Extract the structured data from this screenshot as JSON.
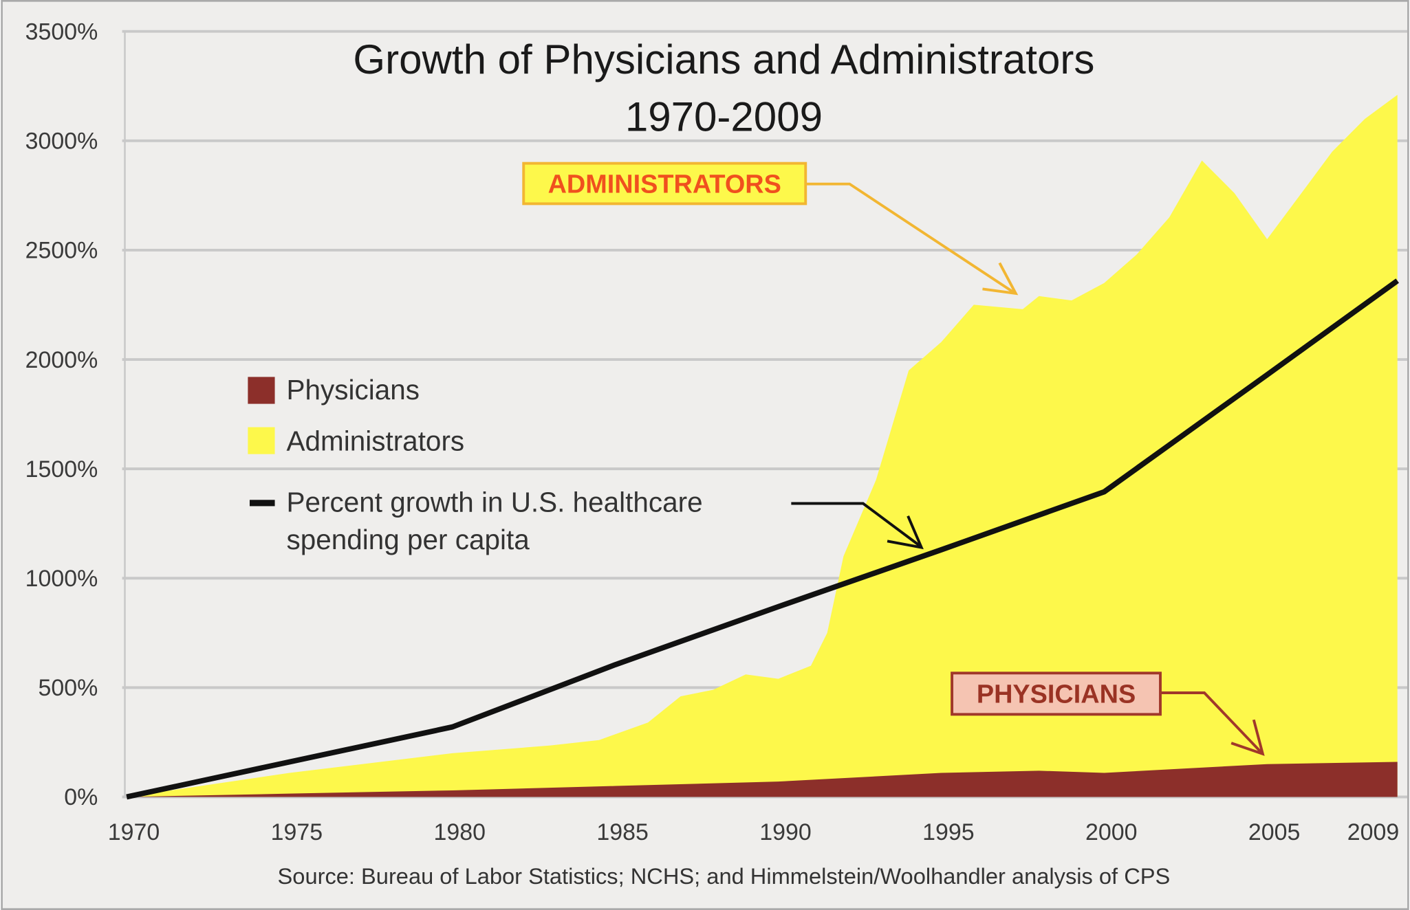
{
  "chart_data": {
    "type": "area",
    "title": "Growth of Physicians and Administrators",
    "subtitle": "1970-2009",
    "xlabel": "",
    "ylabel": "",
    "xlim": [
      1970,
      2009
    ],
    "ylim": [
      0,
      3500
    ],
    "grid": "horizontal",
    "legend_placement": "center-left",
    "x_ticks": [
      "1970",
      "1975",
      "1980",
      "1985",
      "1990",
      "1995",
      "2000",
      "2005",
      "2009"
    ],
    "y_ticks": [
      "0%",
      "500%",
      "1000%",
      "1500%",
      "2000%",
      "2500%",
      "3000%",
      "3500%"
    ],
    "series": [
      {
        "name": "Administrators",
        "kind": "area",
        "color": "#fdf84b",
        "x": [
          1970,
          1975,
          1980,
          1983,
          1984.5,
          1986,
          1987,
          1988,
          1989,
          1990,
          1991,
          1991.5,
          1992,
          1993,
          1994,
          1995,
          1996,
          1997.5,
          1998,
          1999,
          2000,
          2001,
          2002,
          2003,
          2004,
          2005,
          2006,
          2007,
          2008,
          2009
        ],
        "values": [
          0,
          110,
          200,
          235,
          260,
          340,
          460,
          490,
          560,
          540,
          600,
          750,
          1100,
          1450,
          1950,
          2080,
          2250,
          2230,
          2290,
          2270,
          2350,
          2480,
          2650,
          2910,
          2760,
          2550,
          2750,
          2950,
          3100,
          3210
        ]
      },
      {
        "name": "Physicians",
        "kind": "area",
        "color": "#8c2f2a",
        "x": [
          1970,
          1975,
          1980,
          1985,
          1990,
          1995,
          1998,
          2000,
          2005,
          2009
        ],
        "values": [
          0,
          15,
          30,
          50,
          70,
          110,
          120,
          110,
          150,
          160
        ]
      },
      {
        "name": "Percent growth in U.S. healthcare spending per capita",
        "kind": "line",
        "color": "#111111",
        "x": [
          1970,
          1980,
          1985,
          1990,
          1995,
          2000,
          2005,
          2009
        ],
        "values": [
          0,
          320,
          605,
          870,
          1130,
          1395,
          1930,
          2360
        ]
      }
    ],
    "legend": [
      "Physicians",
      "Administrators",
      "Percent growth in U.S. healthcare",
      "spending per capita"
    ],
    "annotations": [
      {
        "text": "ADMINISTRATORS",
        "color": "#f0501e",
        "fill": "#fdf84b",
        "border": "#f2b632"
      },
      {
        "text": "PHYSICIANS",
        "color": "#9a3324",
        "fill": "#f5c4b2",
        "border": "#a0382a"
      }
    ],
    "source": "Source: Bureau of Labor Statistics; NCHS; and Himmelstein/Woolhandler analysis of CPS"
  }
}
